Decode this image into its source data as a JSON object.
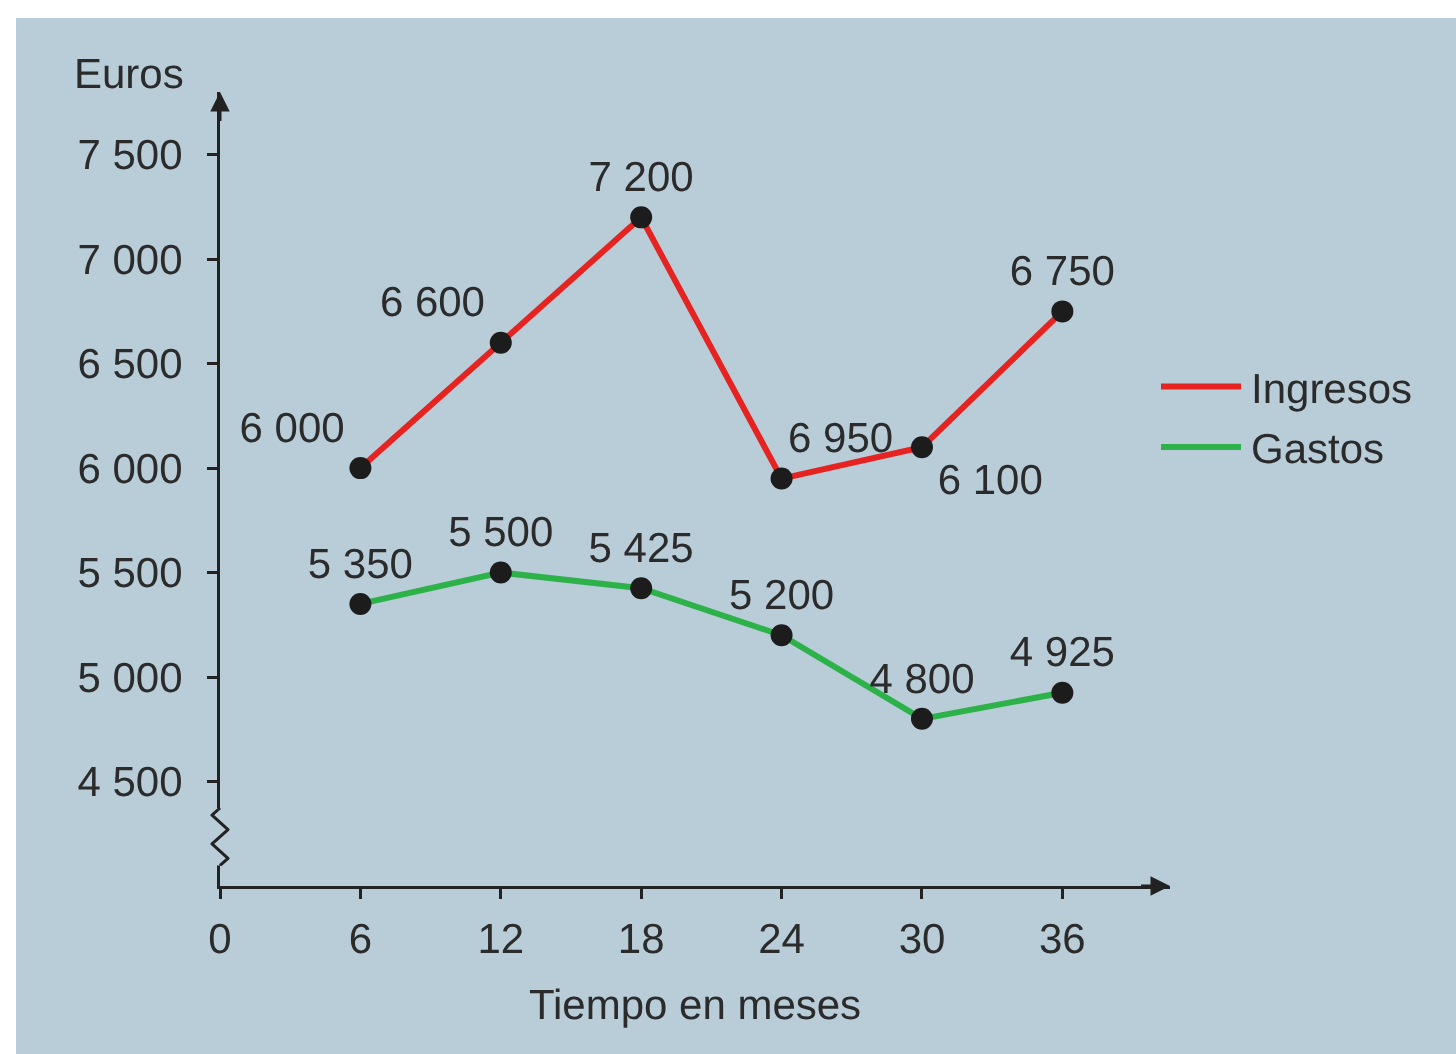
{
  "chart_data": {
    "type": "line",
    "xlabel": "Tiempo en meses",
    "ylabel": "Euros",
    "x": [
      6,
      12,
      18,
      24,
      30,
      36
    ],
    "series": [
      {
        "name": "Ingresos",
        "color": "#e52421",
        "values": [
          6000,
          6600,
          7200,
          5950,
          6100,
          6750
        ],
        "value_labels": [
          "6 000",
          "6 600",
          "7 200",
          null,
          "6 100",
          "6 750"
        ]
      },
      {
        "name": "Gastos",
        "color": "#2db24a",
        "values": [
          5350,
          5500,
          5425,
          5200,
          4800,
          4925
        ],
        "value_labels": [
          "5 350",
          "5 500",
          "5 425",
          "5 200",
          "4 800",
          "4 925"
        ]
      }
    ],
    "annotations": [
      {
        "text": "6 950",
        "x": 24,
        "y": 5950
      }
    ],
    "xlim": [
      0,
      40.6
    ],
    "xticks": [
      0,
      6,
      12,
      18,
      24,
      30,
      36
    ],
    "ylim": [
      4000,
      7800
    ],
    "yticks": [
      {
        "value": 4500,
        "label": "4 500"
      },
      {
        "value": 5000,
        "label": "5 000"
      },
      {
        "value": 5500,
        "label": "5 500"
      },
      {
        "value": 6000,
        "label": "6 000"
      },
      {
        "value": 6500,
        "label": "6 500"
      },
      {
        "value": 7000,
        "label": "7 000"
      },
      {
        "value": 7500,
        "label": "7 500"
      }
    ],
    "legend": "right",
    "marker": "circle"
  }
}
